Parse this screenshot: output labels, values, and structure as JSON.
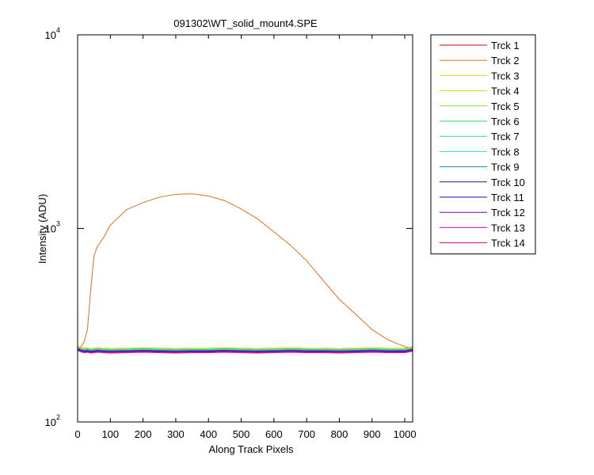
{
  "chart_data": {
    "type": "line",
    "title": "091302\\WT_solid_mount4.SPE",
    "x_label": "Along Track Pixels",
    "y_label": "Intensity (ADU)",
    "xlim": [
      0,
      1024
    ],
    "xticks": [
      0,
      100,
      200,
      300,
      400,
      500,
      600,
      700,
      800,
      900,
      1000
    ],
    "ylim": [
      100,
      10000
    ],
    "log_y": true,
    "yticks": [
      {
        "value": 100,
        "label": "10",
        "exponent": "2"
      },
      {
        "value": 1000,
        "label": "10",
        "exponent": "3"
      },
      {
        "value": 10000,
        "label": "10",
        "exponent": "4"
      }
    ],
    "legend": "outside-right",
    "x": [
      0,
      10,
      20,
      30,
      40,
      50,
      60,
      80,
      100,
      150,
      200,
      250,
      300,
      350,
      400,
      450,
      500,
      550,
      600,
      650,
      700,
      750,
      800,
      850,
      900,
      950,
      1000,
      1024
    ],
    "series": [
      {
        "name": "Trck 1",
        "color": "#e00000",
        "values": [
          246,
          242,
          240,
          241,
          239,
          240,
          241,
          240,
          239,
          240,
          241,
          240,
          239,
          240,
          240,
          241,
          240,
          239,
          240,
          241,
          240,
          240,
          239,
          240,
          241,
          240,
          240,
          244
        ]
      },
      {
        "name": "Trck 2",
        "color": "#e07020",
        "values": [
          235,
          245,
          260,
          300,
          480,
          720,
          805,
          900,
          1040,
          1250,
          1360,
          1450,
          1500,
          1510,
          1470,
          1390,
          1260,
          1120,
          960,
          820,
          680,
          540,
          430,
          360,
          300,
          265,
          245,
          240
        ]
      },
      {
        "name": "Trck 3",
        "color": "#e8d000",
        "values": [
          246,
          242,
          240,
          241,
          239,
          240,
          241,
          240,
          239,
          240,
          241,
          240,
          239,
          240,
          240,
          241,
          240,
          239,
          240,
          241,
          240,
          240,
          239,
          240,
          241,
          240,
          240,
          244
        ]
      },
      {
        "name": "Trck 4",
        "color": "#c8e000",
        "values": [
          244,
          240,
          238,
          239,
          237,
          238,
          239,
          238,
          237,
          238,
          239,
          238,
          237,
          238,
          238,
          239,
          238,
          237,
          238,
          239,
          238,
          238,
          237,
          238,
          239,
          238,
          238,
          242
        ]
      },
      {
        "name": "Trck 5",
        "color": "#80e040",
        "values": [
          244,
          240,
          238,
          239,
          237,
          238,
          239,
          238,
          237,
          238,
          239,
          238,
          237,
          238,
          238,
          239,
          238,
          237,
          238,
          239,
          238,
          238,
          237,
          238,
          239,
          238,
          238,
          242
        ]
      },
      {
        "name": "Trck 6",
        "color": "#20e060",
        "values": [
          242,
          238,
          236,
          237,
          235,
          236,
          237,
          236,
          235,
          236,
          237,
          236,
          235,
          236,
          236,
          237,
          236,
          235,
          236,
          237,
          236,
          236,
          235,
          236,
          237,
          236,
          236,
          240
        ]
      },
      {
        "name": "Trck 7",
        "color": "#20e0a0",
        "values": [
          242,
          238,
          236,
          237,
          235,
          236,
          237,
          236,
          235,
          236,
          237,
          236,
          235,
          236,
          236,
          237,
          236,
          235,
          236,
          237,
          236,
          236,
          235,
          236,
          237,
          236,
          236,
          240
        ]
      },
      {
        "name": "Trck 8",
        "color": "#20e0e0",
        "values": [
          240,
          236,
          234,
          235,
          233,
          234,
          235,
          234,
          233,
          234,
          235,
          234,
          233,
          234,
          234,
          235,
          234,
          233,
          234,
          235,
          234,
          234,
          233,
          234,
          235,
          234,
          234,
          238
        ]
      },
      {
        "name": "Trck 9",
        "color": "#2080d0",
        "values": [
          240,
          236,
          234,
          235,
          233,
          234,
          235,
          234,
          233,
          234,
          235,
          234,
          233,
          234,
          234,
          235,
          234,
          233,
          234,
          235,
          234,
          234,
          233,
          234,
          235,
          234,
          234,
          238
        ]
      },
      {
        "name": "Trck 10",
        "color": "#102080",
        "values": [
          238,
          234,
          232,
          233,
          231,
          232,
          233,
          232,
          231,
          232,
          233,
          232,
          231,
          232,
          232,
          233,
          232,
          231,
          232,
          233,
          232,
          232,
          231,
          232,
          233,
          232,
          232,
          236
        ]
      },
      {
        "name": "Trck 11",
        "color": "#2000c0",
        "values": [
          238,
          234,
          232,
          233,
          231,
          232,
          233,
          232,
          231,
          232,
          233,
          232,
          231,
          232,
          232,
          233,
          232,
          231,
          232,
          233,
          232,
          232,
          231,
          232,
          233,
          232,
          232,
          236
        ]
      },
      {
        "name": "Trck 12",
        "color": "#8000c0",
        "values": [
          236,
          232,
          230,
          231,
          229,
          230,
          231,
          230,
          229,
          230,
          231,
          230,
          229,
          230,
          230,
          231,
          230,
          229,
          230,
          231,
          230,
          230,
          229,
          230,
          231,
          230,
          230,
          234
        ]
      },
      {
        "name": "Trck 13",
        "color": "#d000d0",
        "values": [
          236,
          232,
          230,
          231,
          229,
          230,
          231,
          230,
          229,
          230,
          231,
          230,
          229,
          230,
          230,
          231,
          230,
          229,
          230,
          231,
          230,
          230,
          229,
          230,
          231,
          230,
          230,
          234
        ]
      },
      {
        "name": "Trck 14",
        "color": "#e00080",
        "values": [
          234,
          230,
          228,
          229,
          227,
          228,
          229,
          228,
          227,
          228,
          229,
          228,
          227,
          228,
          228,
          229,
          228,
          227,
          228,
          229,
          228,
          228,
          227,
          228,
          229,
          228,
          228,
          232
        ]
      }
    ]
  }
}
